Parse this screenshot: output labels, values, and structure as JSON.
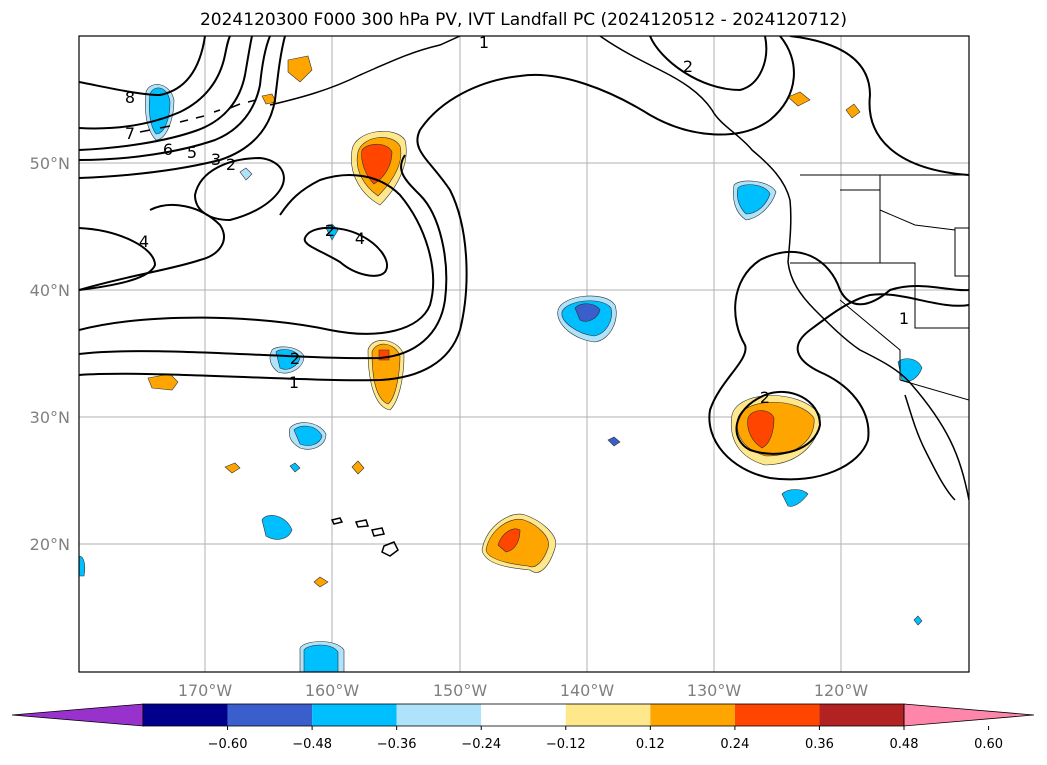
{
  "title": "2024120300 F000 300 hPa PV, IVT Landfall PC (2024120512 - 2024120712)",
  "lat_labels": [
    "50°N",
    "40°N",
    "30°N",
    "20°N"
  ],
  "lon_labels": [
    "170°W",
    "160°W",
    "150°W",
    "140°W",
    "130°W",
    "120°W"
  ],
  "colorbar": {
    "ticks": [
      "−0.60",
      "−0.48",
      "−0.36",
      "−0.24",
      "−0.12",
      "0.12",
      "0.24",
      "0.36",
      "0.48",
      "0.60"
    ],
    "colors": [
      "#9932cc",
      "#00008b",
      "#3a5fcd",
      "#00bfff",
      "#afe2fb",
      "#ffffff",
      "#ffe88c",
      "#ffa500",
      "#ff4500",
      "#b22222",
      "#ff86ab"
    ]
  },
  "contour_labels": [
    "1",
    "2",
    "8",
    "7",
    "6",
    "5",
    "3",
    "2",
    "4",
    "4",
    "2",
    "1",
    "2",
    "1",
    "2"
  ]
}
